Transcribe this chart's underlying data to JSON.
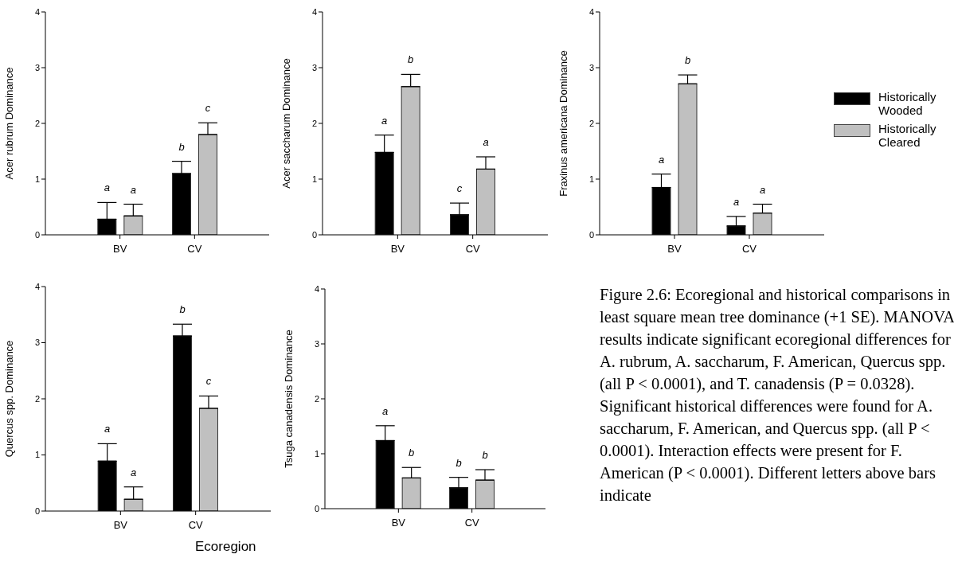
{
  "chart_data": [
    {
      "type": "bar",
      "ylabel": "Acer rubrum Dominance",
      "categories": [
        "BV",
        "CV"
      ],
      "ylim": [
        0,
        4
      ],
      "yticks": [
        0,
        1,
        2,
        3,
        4
      ],
      "legend": false,
      "series": [
        {
          "color": "#000000",
          "values": [
            0.28,
            1.1
          ],
          "errors": [
            [
              0.28,
              0.58
            ],
            [
              1.1,
              1.32
            ]
          ],
          "value_labels": [
            "a",
            "b"
          ]
        },
        {
          "color": "#c0c0c0",
          "values": [
            0.34,
            1.8
          ],
          "errors": [
            [
              0.34,
              0.55
            ],
            [
              1.8,
              2.01
            ]
          ],
          "value_labels": [
            "a",
            "c"
          ]
        }
      ]
    },
    {
      "type": "bar",
      "ylabel": "Acer saccharum Dominance",
      "categories": [
        "BV",
        "CV"
      ],
      "ylim": [
        0,
        4
      ],
      "yticks": [
        0,
        1,
        2,
        3,
        4
      ],
      "legend": false,
      "series": [
        {
          "color": "#000000",
          "values": [
            1.48,
            0.36
          ],
          "errors": [
            [
              1.48,
              1.79
            ],
            [
              0.36,
              0.57
            ]
          ],
          "value_labels": [
            "a",
            "c"
          ]
        },
        {
          "color": "#c0c0c0",
          "values": [
            2.66,
            1.18
          ],
          "errors": [
            [
              2.66,
              2.88
            ],
            [
              1.18,
              1.4
            ]
          ],
          "value_labels": [
            "b",
            "a"
          ]
        }
      ]
    },
    {
      "type": "bar",
      "ylabel": "Fraxinus americana Dominance",
      "categories": [
        "BV",
        "CV"
      ],
      "ylim": [
        0,
        4
      ],
      "yticks": [
        0,
        1,
        2,
        3,
        4
      ],
      "legend": "right",
      "series": [
        {
          "name": "Historically Wooded",
          "color": "#000000",
          "values": [
            0.85,
            0.16
          ],
          "errors": [
            [
              0.85,
              1.09
            ],
            [
              0.16,
              0.33
            ]
          ],
          "value_labels": [
            "a",
            "a"
          ]
        },
        {
          "name": "Historically Cleared",
          "color": "#c0c0c0",
          "values": [
            2.71,
            0.39
          ],
          "errors": [
            [
              2.71,
              2.87
            ],
            [
              0.39,
              0.55
            ]
          ],
          "value_labels": [
            "b",
            "a"
          ]
        }
      ]
    },
    {
      "type": "bar",
      "ylabel": "Quercus spp. Dominance",
      "xlabel": "Ecoregion",
      "categories": [
        "BV",
        "CV"
      ],
      "ylim": [
        0,
        4
      ],
      "yticks": [
        0,
        1,
        2,
        3,
        4
      ],
      "legend": false,
      "series": [
        {
          "color": "#000000",
          "values": [
            0.89,
            3.12
          ],
          "errors": [
            [
              0.89,
              1.2
            ],
            [
              3.12,
              3.33
            ]
          ],
          "value_labels": [
            "a",
            "b"
          ]
        },
        {
          "color": "#c0c0c0",
          "values": [
            0.21,
            1.83
          ],
          "errors": [
            [
              0.21,
              0.43
            ],
            [
              1.83,
              2.05
            ]
          ],
          "value_labels": [
            "a",
            "c"
          ]
        }
      ]
    },
    {
      "type": "bar",
      "ylabel": "Tsuga canadensis Dominance",
      "categories": [
        "BV",
        "CV"
      ],
      "ylim": [
        0,
        4
      ],
      "yticks": [
        0,
        1,
        2,
        3,
        4
      ],
      "legend": false,
      "annotations": [
        "Figure 2.6: Ecoregional and historical comparisons in least square mean tree dominance (+1 SE). MANOVA results indicate significant ecoregional differences for A. rubrum, A. saccharum, F. American, Quercus spp. (all P < 0.0001), and T. canadensis (P = 0.0328). Significant historical differences were found for A. saccharum, F. American, and Quercus spp. (all P < 0.0001). Interaction effects were present for F. American (P < 0.0001). Different letters above bars indicate"
      ],
      "series": [
        {
          "color": "#000000",
          "values": [
            1.24,
            0.38
          ],
          "errors": [
            [
              1.24,
              1.51
            ],
            [
              0.38,
              0.57
            ]
          ],
          "value_labels": [
            "a",
            "b"
          ]
        },
        {
          "color": "#c0c0c0",
          "values": [
            0.56,
            0.52
          ],
          "errors": [
            [
              0.56,
              0.75
            ],
            [
              0.52,
              0.71
            ]
          ],
          "value_labels": [
            "b",
            "b"
          ]
        }
      ]
    }
  ]
}
